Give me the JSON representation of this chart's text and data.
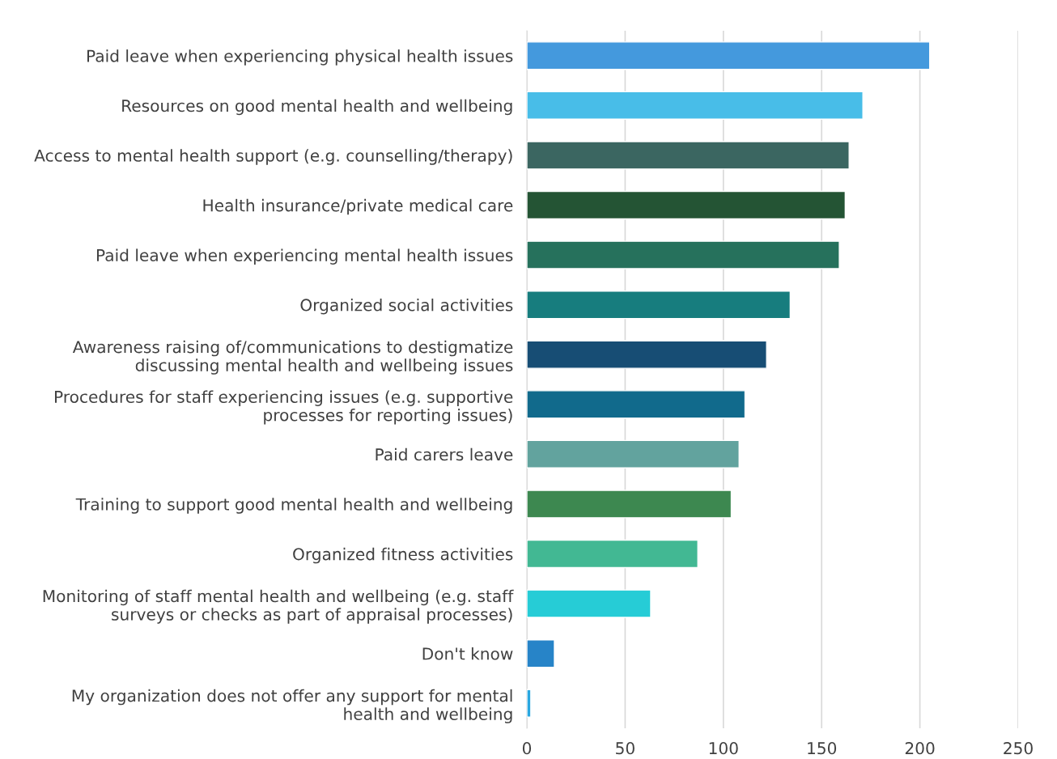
{
  "chart_data": {
    "type": "bar",
    "orientation": "horizontal",
    "categories": [
      "Paid leave when experiencing physical health issues",
      "Resources on good mental health and wellbeing",
      "Access to mental health support (e.g. counselling/therapy)",
      "Health insurance/private medical care",
      "Paid leave when experiencing mental health issues",
      "Organized social activities",
      "Awareness raising of/communications to destigmatize\ndiscussing mental health and wellbeing issues",
      "Procedures for staff experiencing issues (e.g. supportive\nprocesses for reporting issues)",
      "Paid carers leave",
      "Training to support good mental health and wellbeing",
      "Organized fitness activities",
      "Monitoring of staff mental health and wellbeing (e.g. staff\nsurveys or checks as part of appraisal processes)",
      "Don't know",
      "My organization does not offer any support for mental\nhealth and wellbeing"
    ],
    "values": [
      205,
      171,
      164,
      162,
      159,
      134,
      122,
      111,
      108,
      104,
      87,
      63,
      14,
      2
    ],
    "colors": [
      "#4499dd",
      "#48bde8",
      "#3b6661",
      "#245434",
      "#26715c",
      "#177d7e",
      "#174d74",
      "#116a8c",
      "#62a39e",
      "#3d8850",
      "#42b893",
      "#26ccd6",
      "#2784c8",
      "#2aa7e0"
    ],
    "xlim": [
      0,
      250
    ],
    "xticks": [
      0,
      50,
      100,
      150,
      200,
      250
    ],
    "grid": "x"
  }
}
